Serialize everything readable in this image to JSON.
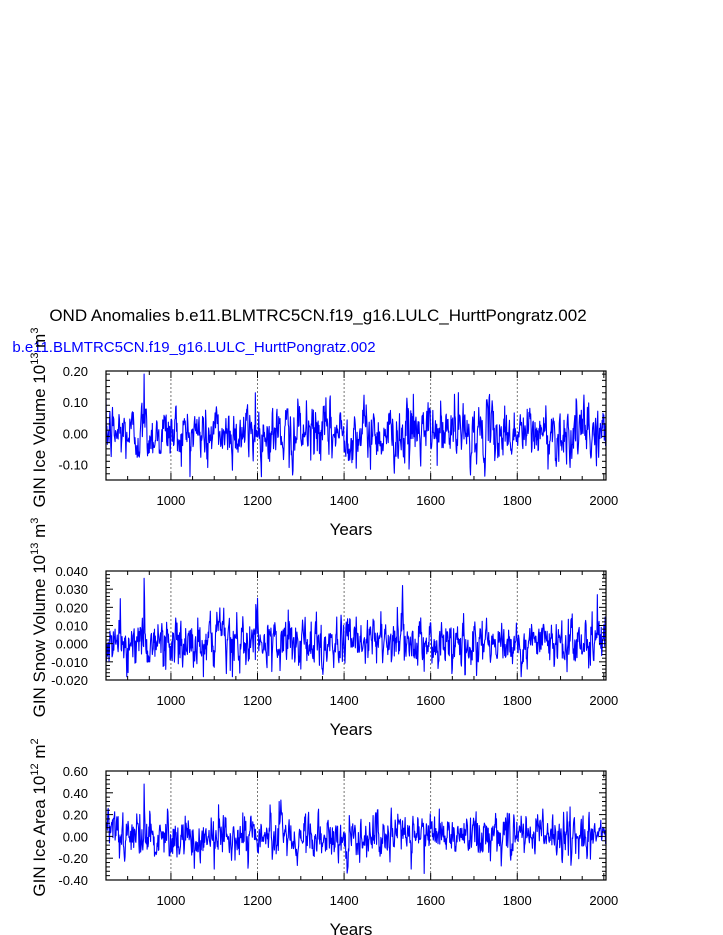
{
  "title": "OND Anomalies b.e11.BLMTRC5CN.f19_g16.LULC_HurttPongratz.002",
  "legend_label": "b.e11.BLMTRC5CN.f19_g16.LULC_HurttPongratz.002",
  "colors": {
    "series": "#0000ff",
    "axes": "#000000",
    "grid": "#555555"
  },
  "chart_data": [
    {
      "type": "line",
      "ylabel_main": "GIN Ice Volume 10",
      "ylabel_exp": "13",
      "ylabel_unit": " m",
      "ylabel_unit_exp": "3",
      "xlabel": "Years",
      "xlim": [
        850,
        2005
      ],
      "ylim": [
        -0.15,
        0.2
      ],
      "xticks": [
        1000,
        1200,
        1400,
        1600,
        1800,
        2000
      ],
      "yticks": [
        -0.1,
        0.0,
        0.1,
        0.2
      ],
      "ytick_labels": [
        "-0.10",
        "0.00",
        "0.10",
        "0.20"
      ],
      "noise_sd": 0.045,
      "spikes": [
        [
          938,
          0.19
        ],
        [
          1195,
          0.13
        ],
        [
          1560,
          0.125
        ],
        [
          1655,
          0.125
        ],
        [
          1085,
          -0.11
        ],
        [
          1550,
          -0.115
        ],
        [
          1273,
          -0.11
        ]
      ],
      "grid_x": [
        1000,
        1200,
        1400,
        1600,
        1800
      ]
    },
    {
      "type": "line",
      "ylabel_main": "GIN Snow Volume 10",
      "ylabel_exp": "13",
      "ylabel_unit": " m",
      "ylabel_unit_exp": "3",
      "xlabel": "Years",
      "xlim": [
        850,
        2005
      ],
      "ylim": [
        -0.02,
        0.04
      ],
      "xticks": [
        1000,
        1200,
        1400,
        1600,
        1800,
        2000
      ],
      "yticks": [
        -0.02,
        -0.01,
        0.0,
        0.01,
        0.02,
        0.03,
        0.04
      ],
      "ytick_labels": [
        "-0.020",
        "-0.010",
        "0.000",
        "0.010",
        "0.020",
        "0.030",
        "0.040"
      ],
      "noise_sd": 0.007,
      "spikes": [
        [
          938,
          0.036
        ],
        [
          1535,
          0.032
        ],
        [
          1985,
          0.027
        ],
        [
          1200,
          0.025
        ],
        [
          1300,
          -0.014
        ],
        [
          1100,
          -0.013
        ]
      ],
      "grid_x": [
        1000,
        1200,
        1400,
        1600,
        1800
      ]
    },
    {
      "type": "line",
      "ylabel_main": "GIN Ice Area 10",
      "ylabel_exp": "12",
      "ylabel_unit": " m",
      "ylabel_unit_exp": "2",
      "xlabel": "Years",
      "xlim": [
        850,
        2005
      ],
      "ylim": [
        -0.4,
        0.6
      ],
      "xticks": [
        1000,
        1200,
        1400,
        1600,
        1800,
        2000
      ],
      "yticks": [
        -0.4,
        -0.2,
        0.0,
        0.2,
        0.4,
        0.6
      ],
      "ytick_labels": [
        "-0.40",
        "-0.20",
        "0.00",
        "0.20",
        "0.40",
        "0.60"
      ],
      "noise_sd": 0.1,
      "spikes": [
        [
          938,
          0.48
        ],
        [
          1110,
          0.29
        ],
        [
          1250,
          0.32
        ],
        [
          1100,
          -0.3
        ],
        [
          1555,
          -0.3
        ],
        [
          1585,
          -0.34
        ]
      ],
      "grid_x": [
        1000,
        1200,
        1400,
        1600,
        1800
      ]
    }
  ]
}
